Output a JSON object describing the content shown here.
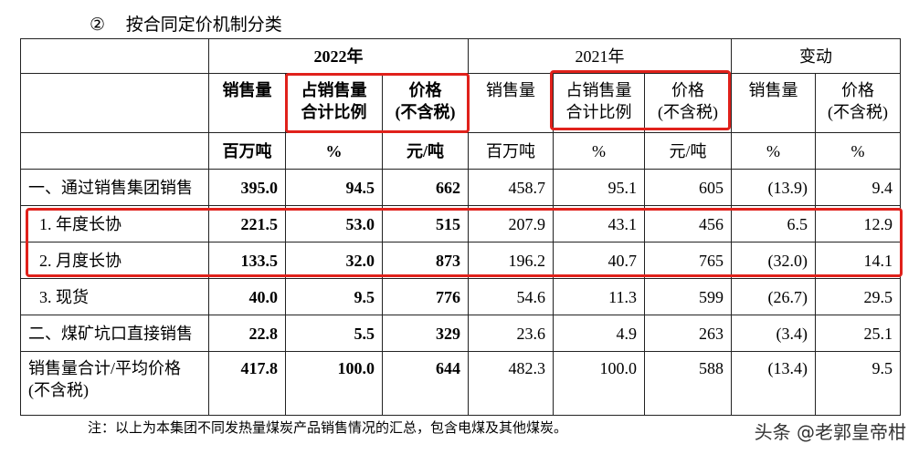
{
  "header": {
    "marker": "②",
    "title": "按合同定价机制分类"
  },
  "table": {
    "groups": [
      "2022年",
      "2021年",
      "变动"
    ],
    "columns": [
      [
        "销售量"
      ],
      [
        "占销售量",
        "合计比例"
      ],
      [
        "价格",
        "(不含税)"
      ],
      [
        "销售量"
      ],
      [
        "占销售量",
        "合计比例"
      ],
      [
        "价格",
        "(不含税)"
      ],
      [
        "销售量"
      ],
      [
        "价格",
        "(不含税)"
      ]
    ],
    "units": [
      "百万吨",
      "%",
      "元/吨",
      "百万吨",
      "%",
      "元/吨",
      "%",
      "%"
    ],
    "rows": [
      {
        "label": [
          "一、通过销售集团销售"
        ],
        "values": [
          "395.0",
          "94.5",
          "662",
          "458.7",
          "95.1",
          "605",
          "(13.9)",
          "9.4"
        ]
      },
      {
        "label": [
          "1. 年度长协"
        ],
        "values": [
          "221.5",
          "53.0",
          "515",
          "207.9",
          "43.1",
          "456",
          "6.5",
          "12.9"
        ]
      },
      {
        "label": [
          "2. 月度长协"
        ],
        "values": [
          "133.5",
          "32.0",
          "873",
          "196.2",
          "40.7",
          "765",
          "(32.0)",
          "14.1"
        ]
      },
      {
        "label": [
          "3. 现货"
        ],
        "values": [
          "40.0",
          "9.5",
          "776",
          "54.6",
          "11.3",
          "599",
          "(26.7)",
          "29.5"
        ]
      },
      {
        "label": [
          "二、煤矿坑口直接销售"
        ],
        "values": [
          "22.8",
          "5.5",
          "329",
          "23.6",
          "4.9",
          "263",
          "(3.4)",
          "25.1"
        ]
      },
      {
        "label": [
          "销售量合计/平均价格",
          "(不含税)"
        ],
        "values": [
          "417.8",
          "100.0",
          "644",
          "482.3",
          "100.0",
          "588",
          "(13.4)",
          "9.5"
        ]
      }
    ]
  },
  "note": "注：以上为本集团不同发热量煤炭产品销售情况的汇总，包含电煤及其他煤炭。",
  "watermark": "头条 @老郭皇帝柑"
}
